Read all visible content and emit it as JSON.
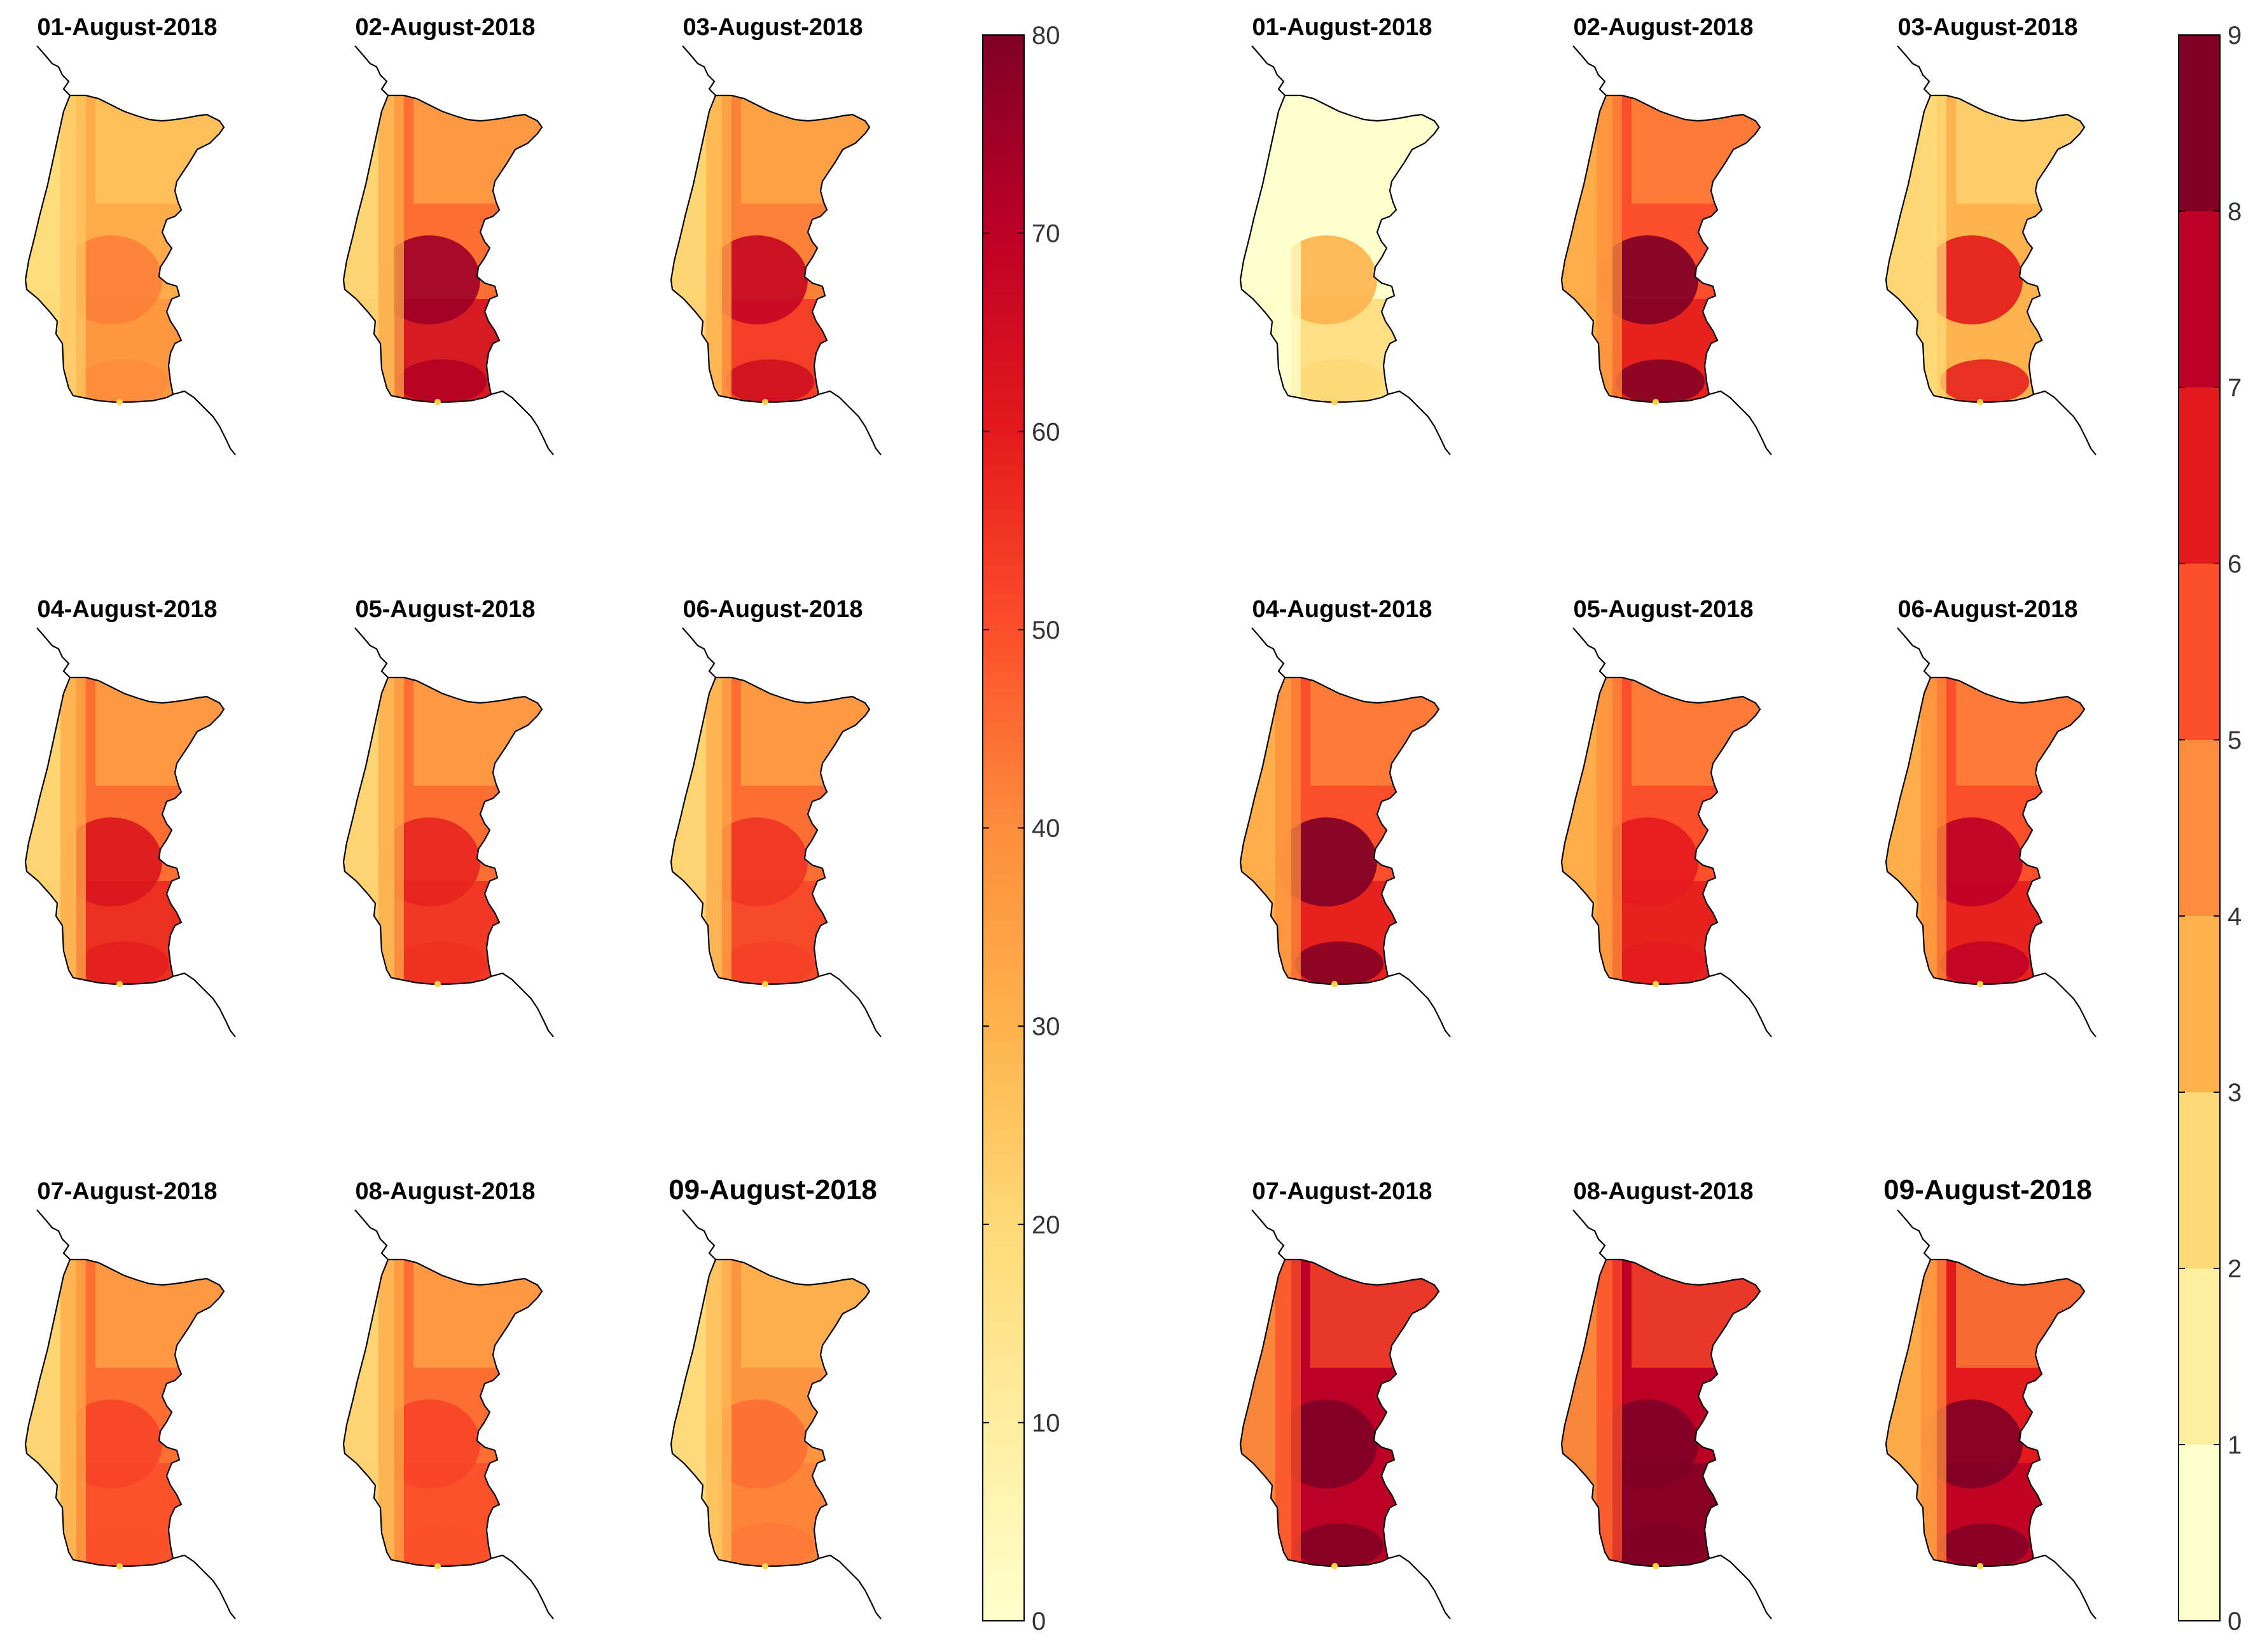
{
  "figure": {
    "left_group": {
      "panel_titles": [
        "01-August-2018",
        "02-August-2018",
        "03-August-2018",
        "04-August-2018",
        "05-August-2018",
        "06-August-2018",
        "07-August-2018",
        "08-August-2018",
        "09-August-2018"
      ],
      "colorbar": {
        "type": "continuous",
        "min": 0,
        "max": 80,
        "tick_labels": [
          "0",
          "10",
          "20",
          "30",
          "40",
          "50",
          "60",
          "70",
          "80"
        ]
      }
    },
    "right_group": {
      "panel_titles": [
        "01-August-2018",
        "02-August-2018",
        "03-August-2018",
        "04-August-2018",
        "05-August-2018",
        "06-August-2018",
        "07-August-2018",
        "08-August-2018",
        "09-August-2018"
      ],
      "colorbar": {
        "type": "discrete",
        "min": 0,
        "max": 9,
        "tick_labels": [
          "0",
          "1",
          "2",
          "3",
          "4",
          "5",
          "6",
          "7",
          "8",
          "9"
        ]
      }
    },
    "palette": [
      "#ffffcc",
      "#ffeda0",
      "#fed976",
      "#feb24c",
      "#fd8d3c",
      "#fc4e2a",
      "#e31a1c",
      "#bd0026",
      "#800026"
    ],
    "coastline_color": "#000000",
    "map_region": "Portugal (mainland)"
  },
  "chart_data": [
    {
      "type": "heatmap",
      "description_of_scale": "continuous colour scale 0-80",
      "panels": [
        {
          "title": "01-August-2018",
          "coast_level": 18,
          "interior_level": 32,
          "south_level": 38,
          "hotspot_level": 42
        },
        {
          "title": "02-August-2018",
          "coast_level": 20,
          "interior_level": 45,
          "south_level": 65,
          "hotspot_level": 75
        },
        {
          "title": "03-August-2018",
          "coast_level": 20,
          "interior_level": 42,
          "south_level": 55,
          "hotspot_level": 68
        },
        {
          "title": "04-August-2018",
          "coast_level": 20,
          "interior_level": 45,
          "south_level": 58,
          "hotspot_level": 62
        },
        {
          "title": "05-August-2018",
          "coast_level": 20,
          "interior_level": 45,
          "south_level": 56,
          "hotspot_level": 58
        },
        {
          "title": "06-August-2018",
          "coast_level": 20,
          "interior_level": 45,
          "south_level": 52,
          "hotspot_level": 55
        },
        {
          "title": "07-August-2018",
          "coast_level": 20,
          "interior_level": 45,
          "south_level": 50,
          "hotspot_level": 52
        },
        {
          "title": "08-August-2018",
          "coast_level": 20,
          "interior_level": 45,
          "south_level": 50,
          "hotspot_level": 52
        },
        {
          "title": "09-August-2018",
          "coast_level": 18,
          "interior_level": 38,
          "south_level": 42,
          "hotspot_level": 45
        }
      ]
    },
    {
      "type": "heatmap",
      "description_of_scale": "discrete colour scale 0-9",
      "panels": [
        {
          "title": "01-August-2018",
          "coast_level": 0.5,
          "interior_level": 0.8,
          "south_level": 2.5,
          "hotspot_level": 3
        },
        {
          "title": "02-August-2018",
          "coast_level": 3,
          "interior_level": 5,
          "south_level": 6.5,
          "hotspot_level": 8.8
        },
        {
          "title": "03-August-2018",
          "coast_level": 2,
          "interior_level": 3,
          "south_level": 3.5,
          "hotspot_level": 6.5
        },
        {
          "title": "04-August-2018",
          "coast_level": 3,
          "interior_level": 5.5,
          "south_level": 6,
          "hotspot_level": 8.5
        },
        {
          "title": "05-August-2018",
          "coast_level": 3,
          "interior_level": 5.5,
          "south_level": 6,
          "hotspot_level": 6.8
        },
        {
          "title": "06-August-2018",
          "coast_level": 3,
          "interior_level": 5.5,
          "south_level": 6.5,
          "hotspot_level": 7.5
        },
        {
          "title": "07-August-2018",
          "coast_level": 4,
          "interior_level": 7,
          "south_level": 7.5,
          "hotspot_level": 8.8
        },
        {
          "title": "08-August-2018",
          "coast_level": 4,
          "interior_level": 7,
          "south_level": 8.5,
          "hotspot_level": 8.9
        },
        {
          "title": "09-August-2018",
          "coast_level": 3.5,
          "interior_level": 6,
          "south_level": 7.5,
          "hotspot_level": 8.5
        }
      ]
    }
  ]
}
